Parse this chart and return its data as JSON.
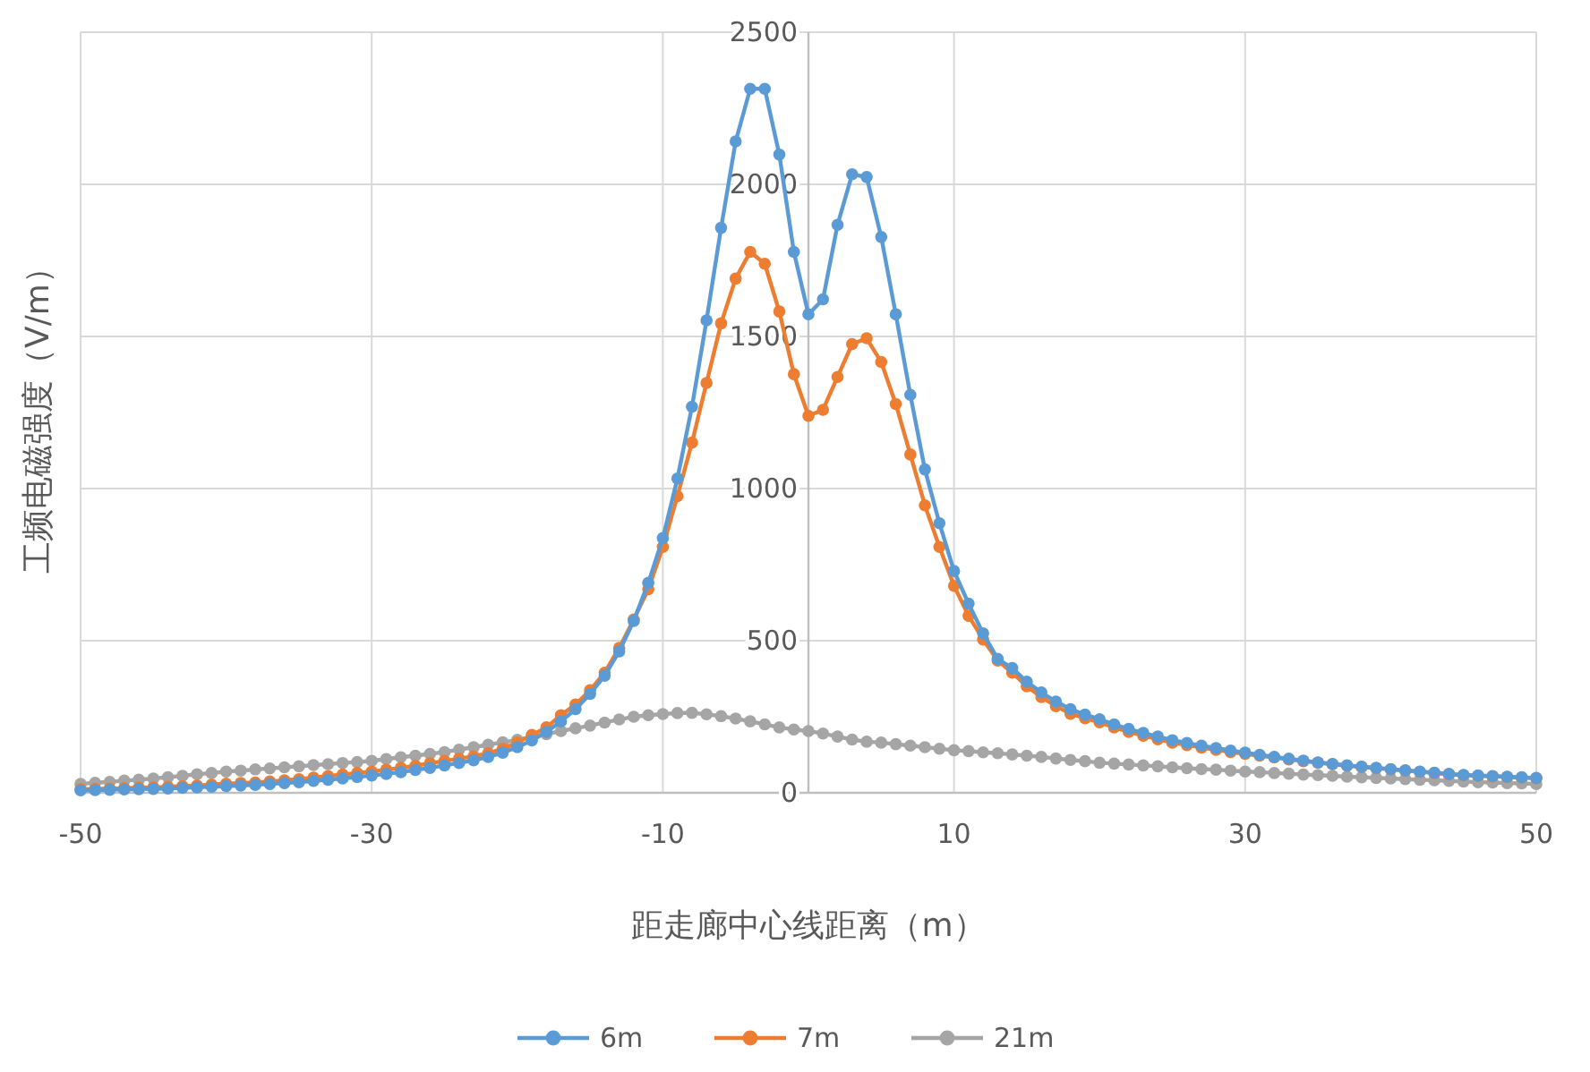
{
  "chart_data": {
    "type": "line",
    "xlabel": "距走廊中心线距离（m）",
    "ylabel": "工频电磁强度（V/m）",
    "x": [
      -50,
      -49,
      -48,
      -47,
      -46,
      -45,
      -44,
      -43,
      -42,
      -41,
      -40,
      -39,
      -38,
      -37,
      -36,
      -35,
      -34,
      -33,
      -32,
      -31,
      -30,
      -29,
      -28,
      -27,
      -26,
      -25,
      -24,
      -23,
      -22,
      -21,
      -20,
      -19,
      -18,
      -17,
      -16,
      -15,
      -14,
      -13,
      -12,
      -11,
      -10,
      -9,
      -8,
      -7,
      -6,
      -5,
      -4,
      -3,
      -2,
      -1,
      0,
      1,
      2,
      3,
      4,
      5,
      6,
      7,
      8,
      9,
      10,
      11,
      12,
      13,
      14,
      15,
      16,
      17,
      18,
      19,
      20,
      21,
      22,
      23,
      24,
      25,
      26,
      27,
      28,
      29,
      30,
      31,
      32,
      33,
      34,
      35,
      36,
      37,
      38,
      39,
      40,
      41,
      42,
      43,
      44,
      45,
      46,
      47,
      48,
      49,
      50
    ],
    "series": [
      {
        "name": "6m",
        "color": "#5b9bd5",
        "values": [
          8,
          9,
          10,
          11,
          12,
          13,
          14,
          16,
          18,
          20,
          22,
          24,
          26,
          29,
          32,
          35,
          39,
          43,
          47,
          52,
          57,
          62,
          68,
          75,
          82,
          90,
          98,
          107,
          118,
          132,
          150,
          172,
          200,
          235,
          275,
          325,
          385,
          465,
          565,
          690,
          837,
          1033,
          1269,
          1553,
          1857,
          2141,
          2314,
          2314,
          2098,
          1778,
          1573,
          1622,
          1867,
          2033,
          2024,
          1827,
          1573,
          1308,
          1063,
          886,
          729,
          622,
          524,
          440,
          410,
          365,
          330,
          300,
          275,
          257,
          242,
          225,
          210,
          197,
          185,
          173,
          164,
          155,
          147,
          139,
          132,
          125,
          118,
          112,
          106,
          100,
          95,
          90,
          86,
          82,
          78,
          74,
          70,
          66,
          62,
          59,
          57,
          55,
          53,
          51,
          49
        ]
      },
      {
        "name": "7m",
        "color": "#ed7d31",
        "values": [
          12,
          13,
          14,
          15,
          17,
          18,
          20,
          22,
          24,
          27,
          30,
          32,
          34,
          37,
          41,
          45,
          50,
          55,
          60,
          65,
          70,
          76,
          82,
          89,
          97,
          105,
          112,
          120,
          130,
          145,
          165,
          190,
          215,
          255,
          290,
          337,
          395,
          476,
          570,
          669,
          808,
          975,
          1151,
          1347,
          1543,
          1690,
          1778,
          1739,
          1582,
          1376,
          1239,
          1259,
          1367,
          1475,
          1494,
          1416,
          1278,
          1112,
          945,
          808,
          680,
          582,
          504,
          435,
          395,
          350,
          315,
          285,
          260,
          245,
          232,
          215,
          200,
          188,
          176,
          165,
          157,
          149,
          141,
          134,
          128,
          122,
          116,
          110,
          104,
          99,
          94,
          89,
          85,
          81,
          77,
          73,
          69,
          65,
          61,
          58,
          56,
          54,
          52,
          50,
          48
        ]
      },
      {
        "name": "21m",
        "color": "#a5a5a5",
        "values": [
          29,
          33,
          36,
          40,
          43,
          47,
          51,
          56,
          61,
          65,
          70,
          73,
          77,
          80,
          84,
          87,
          91,
          94,
          98,
          101,
          105,
          111,
          117,
          122,
          128,
          134,
          142,
          150,
          158,
          166,
          174,
          184,
          193,
          203,
          212,
          221,
          231,
          241,
          250,
          255,
          259,
          262,
          263,
          258,
          252,
          244,
          235,
          225,
          215,
          208,
          203,
          195,
          185,
          175,
          168,
          165,
          160,
          155,
          150,
          145,
          140,
          137,
          133,
          130,
          126,
          122,
          118,
          113,
          108,
          104,
          99,
          96,
          93,
          90,
          87,
          84,
          81,
          78,
          76,
          73,
          70,
          68,
          65,
          63,
          60,
          58,
          56,
          53,
          51,
          49,
          47,
          45,
          43,
          41,
          39,
          37,
          35,
          34,
          32,
          31,
          29
        ]
      }
    ],
    "xlim": [
      -50,
      50
    ],
    "xticks": [
      -50,
      -30,
      -10,
      10,
      30,
      50
    ],
    "ylim": [
      0,
      2500
    ],
    "yticks": [
      0,
      500,
      1000,
      1500,
      2000,
      2500
    ],
    "grid": true,
    "legend": "bottom",
    "marker": "circle",
    "line_style": "solid"
  }
}
